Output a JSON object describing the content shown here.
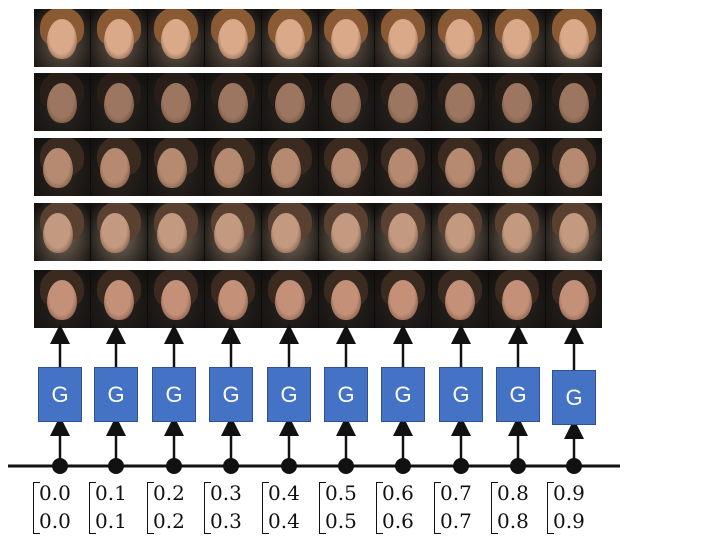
{
  "generator_label": "G",
  "rows": [
    {
      "name": "row-1",
      "skin": "#d9a98a",
      "hair": "#8a5a35",
      "bg": "#6a5a4c"
    },
    {
      "name": "row-2",
      "skin": "#9c7660",
      "hair": "#2a1e18",
      "bg": "#2a2622"
    },
    {
      "name": "row-3",
      "skin": "#b58a70",
      "hair": "#3b2a20",
      "bg": "#2e2620"
    },
    {
      "name": "row-4",
      "skin": "#c39a80",
      "hair": "#5a4030",
      "bg": "#7a6a5a"
    },
    {
      "name": "row-5",
      "skin": "#c49078",
      "hair": "#3a2a20",
      "bg": "#2a2420"
    }
  ],
  "vectors": [
    {
      "a": "0.0",
      "b": "0.0"
    },
    {
      "a": "0.1",
      "b": "0.1"
    },
    {
      "a": "0.2",
      "b": "0.2"
    },
    {
      "a": "0.3",
      "b": "0.3"
    },
    {
      "a": "0.4",
      "b": "0.4"
    },
    {
      "a": "0.5",
      "b": "0.5"
    },
    {
      "a": "0.6",
      "b": "0.6"
    },
    {
      "a": "0.7",
      "b": "0.7"
    },
    {
      "a": "0.8",
      "b": "0.8"
    },
    {
      "a": "0.9",
      "b": "0.9"
    }
  ]
}
